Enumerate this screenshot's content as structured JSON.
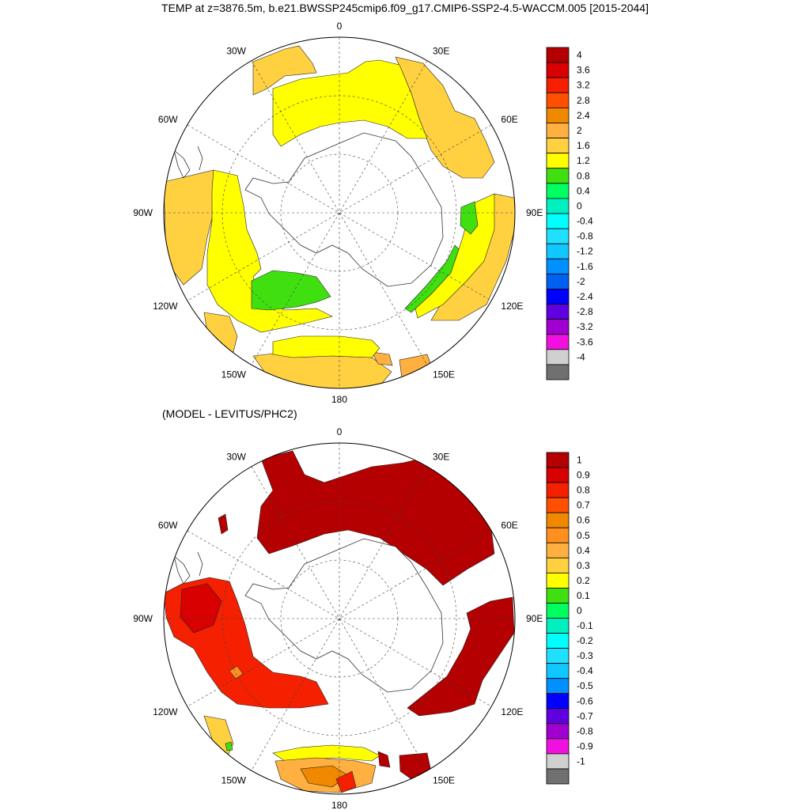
{
  "title": "TEMP at z=3876.5m, b.e21.BWSSP245cmip6.f09_g17.CMIP6-SSP2-4.5-WACCM.005 [2015-2044]",
  "subtitle": "(MODEL - LEVITUS/PHC2)",
  "longitude_labels": [
    "0",
    "30E",
    "60E",
    "90E",
    "120E",
    "150E",
    "180",
    "150W",
    "120W",
    "90W",
    "60W",
    "30W"
  ],
  "panel_top": {
    "name": "model-temperature",
    "colorbar_labels": [
      "4",
      "3.6",
      "3.2",
      "2.8",
      "2.4",
      "2",
      "1.6",
      "1.2",
      "0.8",
      "0.4",
      "0",
      "-0.4",
      "-0.8",
      "-1.2",
      "-1.6",
      "-2",
      "-2.4",
      "-2.8",
      "-3.2",
      "-3.6",
      "-4"
    ],
    "colorbar_colors": [
      "#b40000",
      "#d80000",
      "#f42000",
      "#ff5000",
      "#f08800",
      "#ffb040",
      "#ffd040",
      "#ffff00",
      "#40e010",
      "#00ff60",
      "#00f0c0",
      "#00ffff",
      "#20e0ff",
      "#10c8ff",
      "#0090ff",
      "#0060f0",
      "#0000ff",
      "#6000e0",
      "#a000d0",
      "#f010e0",
      "#d0d0d0",
      "#707070"
    ]
  },
  "panel_bottom": {
    "name": "model-minus-observed",
    "colorbar_labels": [
      "1",
      "0.9",
      "0.8",
      "0.7",
      "0.6",
      "0.5",
      "0.4",
      "0.3",
      "0.2",
      "0.1",
      "0",
      "-0.1",
      "-0.2",
      "-0.3",
      "-0.4",
      "-0.5",
      "-0.6",
      "-0.7",
      "-0.8",
      "-0.9",
      "-1"
    ],
    "colorbar_colors": [
      "#b40000",
      "#d80000",
      "#f42000",
      "#ff5000",
      "#f08800",
      "#ff9020",
      "#ffb040",
      "#ffd040",
      "#ffff00",
      "#40e010",
      "#00ff60",
      "#00f0c0",
      "#00ffff",
      "#20e0ff",
      "#10c8ff",
      "#0090ff",
      "#0000ff",
      "#6000e0",
      "#a000d0",
      "#f010e0",
      "#d0d0d0",
      "#707070"
    ]
  }
}
